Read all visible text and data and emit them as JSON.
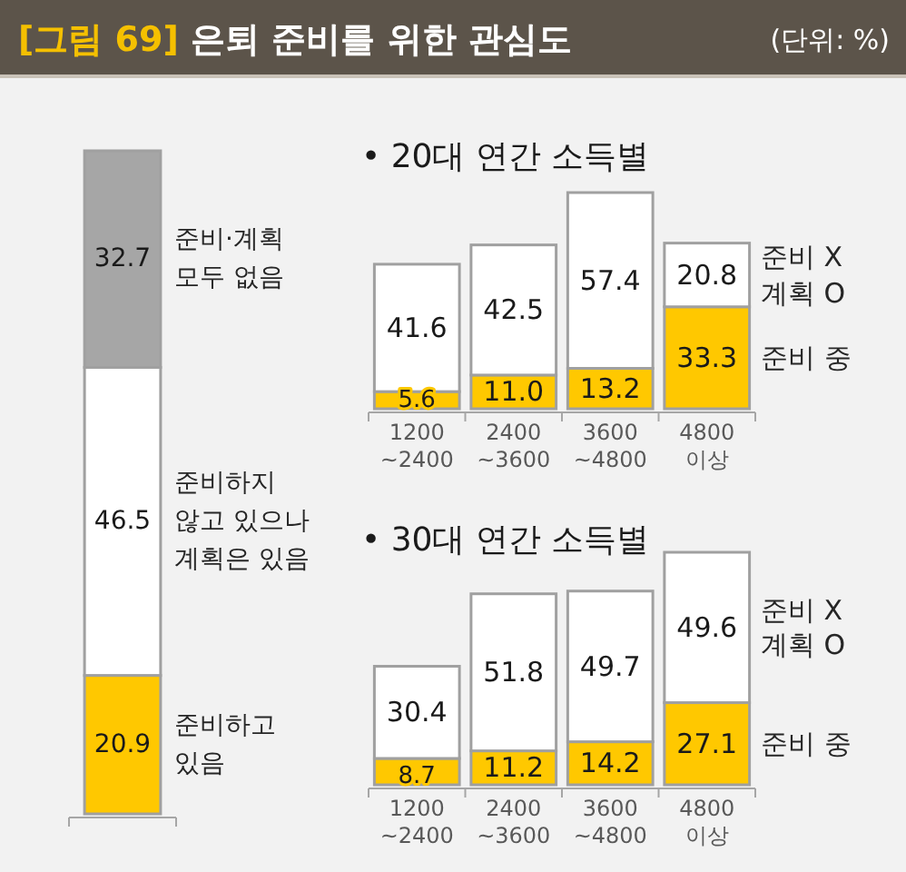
{
  "chart_data": [
    {
      "type": "bar",
      "title": "[그림 69] 은퇴 준비를 위한 관심도",
      "annotations": [
        "(단위: %)"
      ],
      "categories": [
        null
      ],
      "stacked": true,
      "series": [
        {
          "name": "준비하고 있음",
          "color": "#ffc800",
          "values": [
            20.9
          ],
          "value_labels": [
            "20.9"
          ]
        },
        {
          "name": "준비하지 않고 있으나 계획은 있음",
          "color": "#ffffff",
          "values": [
            46.5
          ],
          "value_labels": [
            "46.5"
          ]
        },
        {
          "name": "준비·계획 모두 없음",
          "color": "#a6a6a6",
          "values": [
            32.7
          ],
          "value_labels": [
            "32.7"
          ]
        }
      ]
    },
    {
      "type": "bar",
      "title": "• 20대 연간 소득별",
      "categories": [
        "1200 ~2400",
        "2400 ~3600",
        "3600 ~4800",
        "4800 이상"
      ],
      "stacked": true,
      "series": [
        {
          "name": "준비 중",
          "color": "#ffc800",
          "values": [
            5.6,
            11.0,
            13.2,
            33.3
          ],
          "value_labels": [
            "5.6",
            "11.0",
            "13.2",
            "33.3"
          ]
        },
        {
          "name": "준비 X 계획 O",
          "color": "#ffffff",
          "values": [
            41.6,
            42.5,
            57.4,
            20.8
          ],
          "value_labels": [
            "41.6",
            "42.5",
            "57.4",
            "20.8"
          ]
        }
      ]
    },
    {
      "type": "bar",
      "title": "• 30대 연간 소득별",
      "categories": [
        "1200 ~2400",
        "2400 ~3600",
        "3600 ~4800",
        "4800 이상"
      ],
      "stacked": true,
      "series": [
        {
          "name": "준비 중",
          "color": "#ffc800",
          "values": [
            8.7,
            11.2,
            14.2,
            27.1
          ],
          "value_labels": [
            "8.7",
            "11.2",
            "14.2",
            "27.1"
          ]
        },
        {
          "name": "준비 X 계획 O",
          "color": "#ffffff",
          "values": [
            30.4,
            51.8,
            49.7,
            49.6
          ],
          "value_labels": [
            "30.4",
            "51.8",
            "49.7",
            "49.6"
          ]
        }
      ]
    }
  ]
}
